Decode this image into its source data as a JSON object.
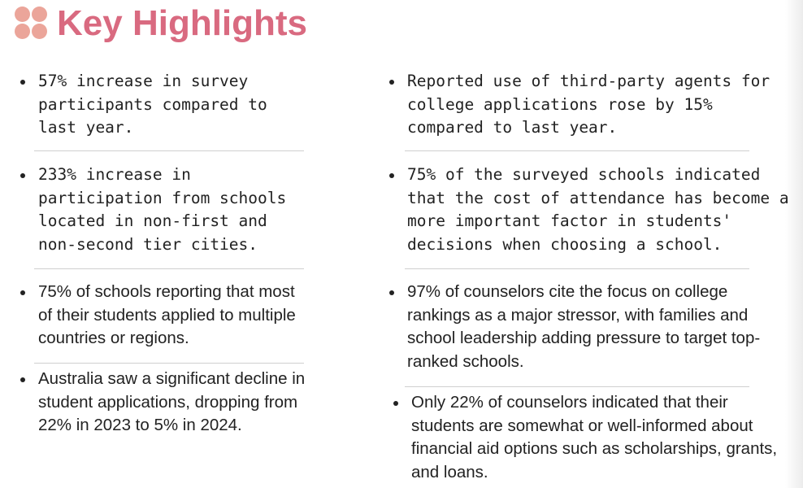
{
  "header": {
    "title": "Key Highlights",
    "logo_icon": "four-dots-logo-icon",
    "accent_color": "#d96a80"
  },
  "left_column": {
    "items": [
      "57% increase in survey participants compared to last year.",
      "233% increase in participation from schools located in non-first and non-second tier cities.",
      "75% of schools reporting that most of their students applied to multiple countries or regions.",
      "Australia saw a significant decline in student applications, dropping from 22% in 2023 to 5% in 2024."
    ]
  },
  "right_column": {
    "items": [
      "Reported use of third-party agents for college applications rose by 15% compared to last year.",
      "75% of the surveyed schools indicated that the cost of attendance has become a more important factor in students' decisions when choosing a school.",
      "97% of counselors cite the focus on college rankings as a major stressor, with families and school leadership adding pressure to target top-ranked schools.",
      "Only 22% of counselors indicated that their students are somewhat or well-informed about financial aid options such as scholarships, grants, and loans."
    ]
  }
}
